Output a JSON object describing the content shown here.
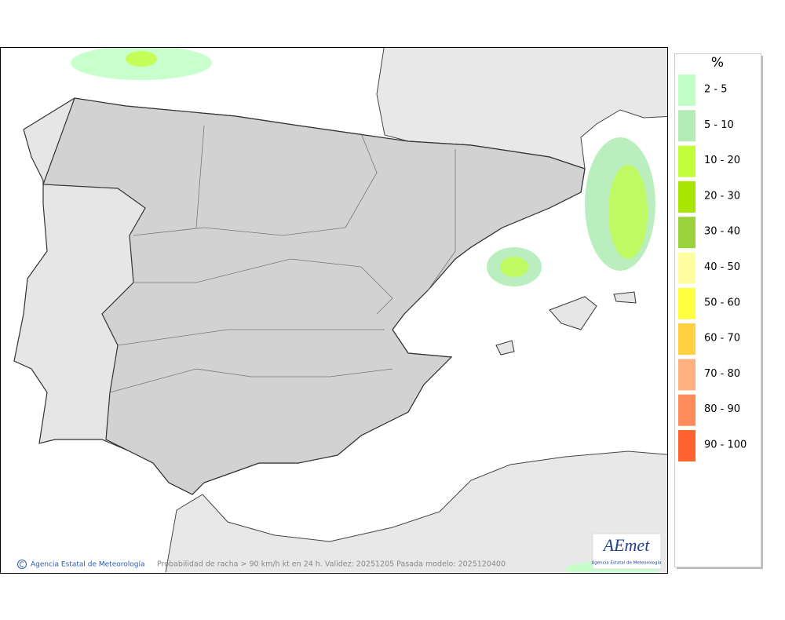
{
  "map": {
    "caption": "Probabilidad de racha > 90 km/h kt en 24 h. Validez: 20251205 Pasada modelo: 2025120400",
    "credit": "Agencia Estatal de Meteorología",
    "logo": {
      "brand": "AEmet",
      "name": "Agencia Estatal de Meteorología"
    }
  },
  "legend": {
    "title": "%",
    "items": [
      {
        "label": "2 - 5",
        "color": "#c2ffc6"
      },
      {
        "label": "5 - 10",
        "color": "#b4ecb8"
      },
      {
        "label": "10 - 20",
        "color": "#c2ff3a"
      },
      {
        "label": "20 - 30",
        "color": "#a6e600"
      },
      {
        "label": "30 - 40",
        "color": "#9bd13a"
      },
      {
        "label": "40 - 50",
        "color": "#ffffa0"
      },
      {
        "label": "50 - 60",
        "color": "#ffff40"
      },
      {
        "label": "60 - 70",
        "color": "#ffd040"
      },
      {
        "label": "70 - 80",
        "color": "#ffb080"
      },
      {
        "label": "80 - 90",
        "color": "#ff8c5a"
      },
      {
        "label": "90 - 100",
        "color": "#ff6330"
      }
    ]
  }
}
